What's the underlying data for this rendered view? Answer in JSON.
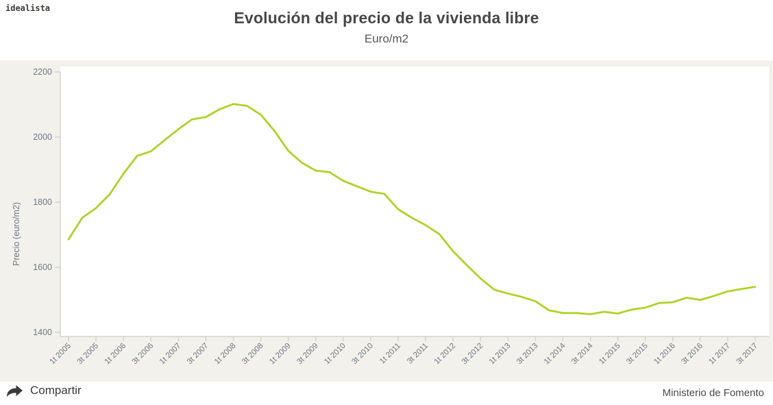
{
  "header": {
    "logo": "idealista",
    "title": "Evolución del precio de la vivienda libre",
    "subtitle": "Euro/m2"
  },
  "footer": {
    "share_label": "Compartir",
    "source": "Ministerio de Fomento"
  },
  "colors": {
    "line": "#aed228",
    "band_bg": "#f2f1eb",
    "plot_bg": "#ffffff",
    "axis": "#d6d3cc",
    "tick_label": "#6e7887",
    "title": "#474747"
  },
  "chart_data": {
    "type": "line",
    "title": "Evolución del precio de la vivienda libre",
    "subtitle": "Euro/m2",
    "xlabel": "",
    "ylabel": "Precio (euro/m2)",
    "ylim": [
      1400,
      2200
    ],
    "yticks": [
      1400,
      1600,
      1800,
      2000,
      2200
    ],
    "grid": false,
    "legend": false,
    "line_color": "#aed228",
    "x_ticks_every": 2,
    "x_tick_labels": [
      "1t 2005",
      "3t 2005",
      "1t 2006",
      "3t 2006",
      "1t 2007",
      "3t 2007",
      "1t 2008",
      "3t 2008",
      "1t 2009",
      "3t 2009",
      "1t 2010",
      "3t 2010",
      "1t 2011",
      "3t 2011",
      "1t 2012",
      "3t 2012",
      "1t 2013",
      "3t 2013",
      "1t 2014",
      "3t 2014",
      "1t 2015",
      "3t 2015",
      "1t 2016",
      "3t 2016",
      "1t 2017",
      "3t 2017"
    ],
    "categories": [
      "1t 2005",
      "2t 2005",
      "3t 2005",
      "4t 2005",
      "1t 2006",
      "2t 2006",
      "3t 2006",
      "4t 2006",
      "1t 2007",
      "2t 2007",
      "3t 2007",
      "4t 2007",
      "1t 2008",
      "2t 2008",
      "3t 2008",
      "4t 2008",
      "1t 2009",
      "2t 2009",
      "3t 2009",
      "4t 2009",
      "1t 2010",
      "2t 2010",
      "3t 2010",
      "4t 2010",
      "1t 2011",
      "2t 2011",
      "3t 2011",
      "4t 2011",
      "1t 2012",
      "2t 2012",
      "3t 2012",
      "4t 2012",
      "1t 2013",
      "2t 2013",
      "3t 2013",
      "4t 2013",
      "1t 2014",
      "2t 2014",
      "3t 2014",
      "4t 2014",
      "1t 2015",
      "2t 2015",
      "3t 2015",
      "4t 2015",
      "1t 2016",
      "2t 2016",
      "3t 2016",
      "4t 2016",
      "1t 2017",
      "2t 2017",
      "3t 2017"
    ],
    "series": [
      {
        "name": "Precio de la vivienda libre",
        "values": [
          1685.4,
          1752.1,
          1781.8,
          1824.3,
          1887.6,
          1942.3,
          1956.3,
          1990.5,
          2024.2,
          2054.5,
          2061.2,
          2085.5,
          2101.4,
          2095.7,
          2068.7,
          2018.5,
          1958.1,
          1920.9,
          1896.8,
          1892.3,
          1865.7,
          1848.9,
          1832.2,
          1825.5,
          1777.8,
          1752.1,
          1729.5,
          1701.8,
          1649.3,
          1606.4,
          1565.6,
          1531.2,
          1519.4,
          1509.0,
          1495.3,
          1467.6,
          1459.4,
          1459.3,
          1455.8,
          1463.1,
          1457.9,
          1469.8,
          1476.0,
          1490.1,
          1492.4,
          1506.4,
          1499.7,
          1512.0,
          1525.8,
          1533.3,
          1540.1
        ]
      }
    ]
  }
}
